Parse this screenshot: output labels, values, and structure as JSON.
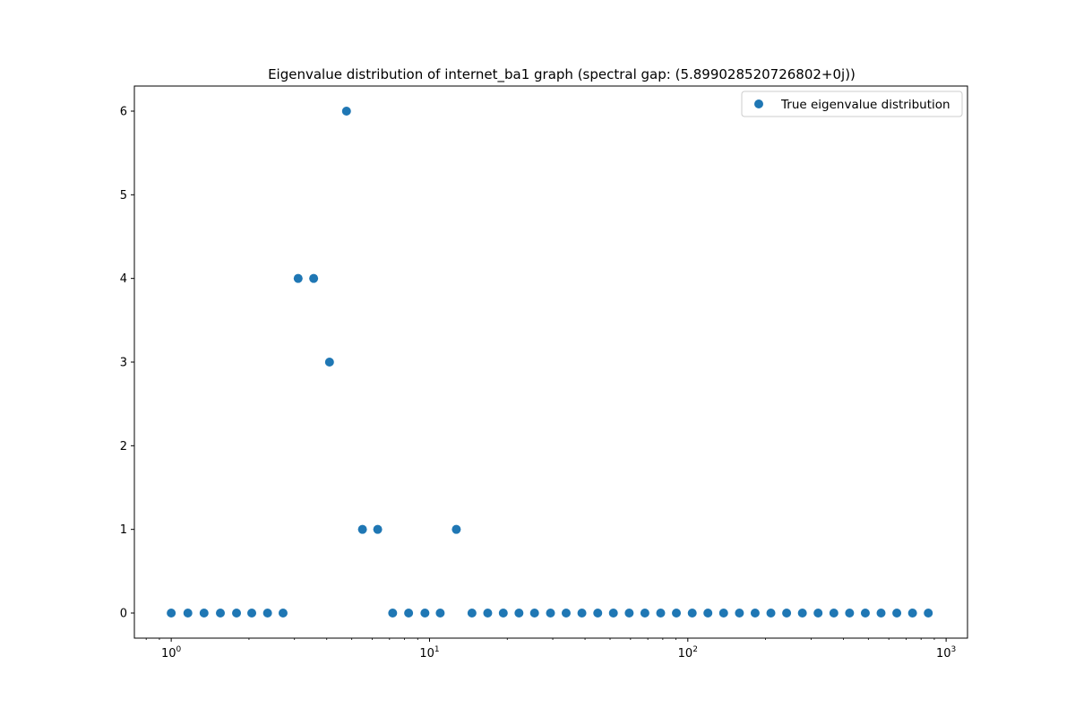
{
  "chart_data": {
    "type": "scatter",
    "title": "Eigenvalue distribution of internet_ba1 graph (spectral gap: (5.899028520726802+0j))",
    "xlabel": "",
    "ylabel": "",
    "x_scale": "log",
    "xlim": [
      0.72,
      1210
    ],
    "ylim": [
      -0.3,
      6.3
    ],
    "x_ticks": [
      {
        "value": 1,
        "base": "10",
        "exp": "0"
      },
      {
        "value": 10,
        "base": "10",
        "exp": "1"
      },
      {
        "value": 100,
        "base": "10",
        "exp": "2"
      },
      {
        "value": 1000,
        "base": "10",
        "exp": "3"
      }
    ],
    "y_ticks": [
      0,
      1,
      2,
      3,
      4,
      5,
      6
    ],
    "grid": false,
    "legend_position": "top-right",
    "color": "#1f77b4",
    "series": [
      {
        "name": "True eigenvalue distribution",
        "points": [
          {
            "x": 1.0,
            "y": 0
          },
          {
            "x": 1.16,
            "y": 0
          },
          {
            "x": 1.34,
            "y": 0
          },
          {
            "x": 1.55,
            "y": 0
          },
          {
            "x": 1.79,
            "y": 0
          },
          {
            "x": 2.05,
            "y": 0
          },
          {
            "x": 2.36,
            "y": 0
          },
          {
            "x": 2.71,
            "y": 0
          },
          {
            "x": 3.1,
            "y": 4
          },
          {
            "x": 3.56,
            "y": 4
          },
          {
            "x": 4.1,
            "y": 3
          },
          {
            "x": 4.77,
            "y": 6
          },
          {
            "x": 5.5,
            "y": 1
          },
          {
            "x": 6.3,
            "y": 1
          },
          {
            "x": 7.2,
            "y": 0
          },
          {
            "x": 8.3,
            "y": 0
          },
          {
            "x": 9.6,
            "y": 0
          },
          {
            "x": 11.0,
            "y": 0
          },
          {
            "x": 12.7,
            "y": 1
          },
          {
            "x": 14.6,
            "y": 0
          },
          {
            "x": 16.8,
            "y": 0
          },
          {
            "x": 19.3,
            "y": 0
          },
          {
            "x": 22.2,
            "y": 0
          },
          {
            "x": 25.5,
            "y": 0
          },
          {
            "x": 29.4,
            "y": 0
          },
          {
            "x": 33.8,
            "y": 0
          },
          {
            "x": 38.9,
            "y": 0
          },
          {
            "x": 44.8,
            "y": 0
          },
          {
            "x": 51.5,
            "y": 0
          },
          {
            "x": 59.3,
            "y": 0
          },
          {
            "x": 68.2,
            "y": 0
          },
          {
            "x": 78.5,
            "y": 0
          },
          {
            "x": 90.3,
            "y": 0
          },
          {
            "x": 104,
            "y": 0
          },
          {
            "x": 119.6,
            "y": 0
          },
          {
            "x": 137.6,
            "y": 0
          },
          {
            "x": 158.4,
            "y": 0
          },
          {
            "x": 182.2,
            "y": 0
          },
          {
            "x": 209.7,
            "y": 0
          },
          {
            "x": 241.3,
            "y": 0
          },
          {
            "x": 277.6,
            "y": 0
          },
          {
            "x": 319.4,
            "y": 0
          },
          {
            "x": 367.6,
            "y": 0
          },
          {
            "x": 422.9,
            "y": 0
          },
          {
            "x": 486.6,
            "y": 0
          },
          {
            "x": 559.9,
            "y": 0
          },
          {
            "x": 644.3,
            "y": 0
          },
          {
            "x": 741.3,
            "y": 0
          },
          {
            "x": 853,
            "y": 0
          }
        ]
      }
    ]
  }
}
